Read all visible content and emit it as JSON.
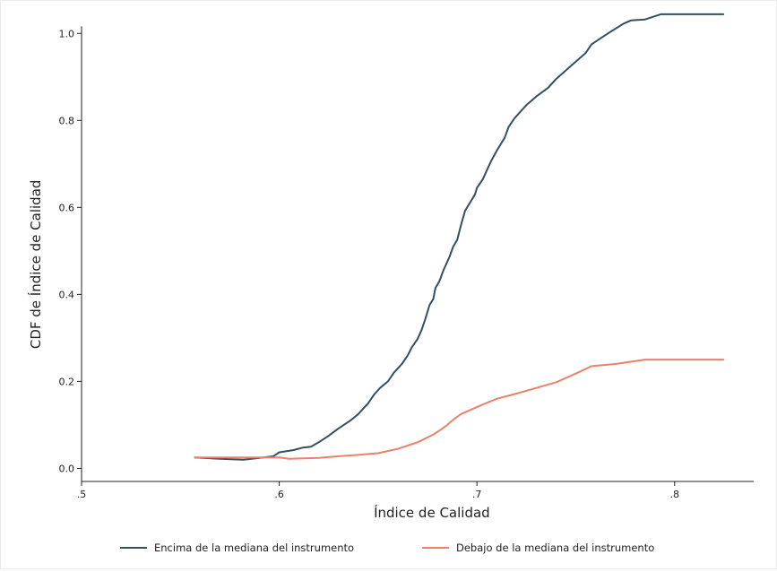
{
  "chart_data": {
    "type": "line",
    "title": "",
    "xlabel": "Índice de Calidad",
    "ylabel": "CDF de Índice de Calidad",
    "xlim": [
      0.5,
      0.84
    ],
    "ylim": [
      -0.03,
      1.05
    ],
    "x_ticks": [
      {
        "value": 0.5,
        "label": ".5"
      },
      {
        "value": 0.6,
        "label": ".6"
      },
      {
        "value": 0.7,
        "label": ".7"
      },
      {
        "value": 0.8,
        "label": ".8"
      }
    ],
    "y_ticks": [
      {
        "value": 0.0,
        "label": "0.0"
      },
      {
        "value": 0.2,
        "label": "0.2"
      },
      {
        "value": 0.4,
        "label": "0.4"
      },
      {
        "value": 0.6,
        "label": "0.6"
      },
      {
        "value": 0.8,
        "label": "0.8"
      },
      {
        "value": 1.0,
        "label": "1.0"
      }
    ],
    "grid": false,
    "legend_position": "bottom",
    "series": [
      {
        "name": "Encima de la mediana del instrumento",
        "color": "#33505e",
        "points": [
          [
            0.557,
            0.025
          ],
          [
            0.57,
            0.022
          ],
          [
            0.582,
            0.02
          ],
          [
            0.59,
            0.024
          ],
          [
            0.597,
            0.028
          ],
          [
            0.6,
            0.037
          ],
          [
            0.607,
            0.042
          ],
          [
            0.612,
            0.048
          ],
          [
            0.616,
            0.05
          ],
          [
            0.62,
            0.06
          ],
          [
            0.625,
            0.075
          ],
          [
            0.63,
            0.092
          ],
          [
            0.636,
            0.11
          ],
          [
            0.64,
            0.125
          ],
          [
            0.645,
            0.15
          ],
          [
            0.648,
            0.17
          ],
          [
            0.651,
            0.185
          ],
          [
            0.655,
            0.2
          ],
          [
            0.658,
            0.22
          ],
          [
            0.662,
            0.24
          ],
          [
            0.665,
            0.26
          ],
          [
            0.667,
            0.278
          ],
          [
            0.67,
            0.298
          ],
          [
            0.672,
            0.318
          ],
          [
            0.674,
            0.345
          ],
          [
            0.676,
            0.375
          ],
          [
            0.678,
            0.39
          ],
          [
            0.679,
            0.415
          ],
          [
            0.681,
            0.43
          ],
          [
            0.683,
            0.455
          ],
          [
            0.686,
            0.485
          ],
          [
            0.688,
            0.51
          ],
          [
            0.69,
            0.525
          ],
          [
            0.692,
            0.56
          ],
          [
            0.694,
            0.592
          ],
          [
            0.697,
            0.615
          ],
          [
            0.699,
            0.63
          ],
          [
            0.7,
            0.645
          ],
          [
            0.703,
            0.665
          ],
          [
            0.705,
            0.685
          ],
          [
            0.707,
            0.705
          ],
          [
            0.71,
            0.73
          ],
          [
            0.712,
            0.745
          ],
          [
            0.714,
            0.76
          ],
          [
            0.716,
            0.785
          ],
          [
            0.719,
            0.805
          ],
          [
            0.722,
            0.82
          ],
          [
            0.725,
            0.835
          ],
          [
            0.73,
            0.855
          ],
          [
            0.736,
            0.875
          ],
          [
            0.74,
            0.895
          ],
          [
            0.745,
            0.915
          ],
          [
            0.75,
            0.935
          ],
          [
            0.755,
            0.955
          ],
          [
            0.758,
            0.975
          ],
          [
            0.763,
            0.99
          ],
          [
            0.768,
            1.005
          ],
          [
            0.774,
            1.022
          ],
          [
            0.778,
            1.03
          ],
          [
            0.785,
            1.032
          ],
          [
            0.793,
            1.044
          ],
          [
            0.825,
            1.044
          ]
        ]
      },
      {
        "name": "Debajo de la mediana del instrumento",
        "color": "#e8826a",
        "points": [
          [
            0.557,
            0.025
          ],
          [
            0.575,
            0.025
          ],
          [
            0.6,
            0.025
          ],
          [
            0.605,
            0.022
          ],
          [
            0.62,
            0.024
          ],
          [
            0.63,
            0.028
          ],
          [
            0.64,
            0.031
          ],
          [
            0.65,
            0.035
          ],
          [
            0.66,
            0.045
          ],
          [
            0.67,
            0.06
          ],
          [
            0.678,
            0.078
          ],
          [
            0.682,
            0.09
          ],
          [
            0.685,
            0.1
          ],
          [
            0.688,
            0.112
          ],
          [
            0.692,
            0.125
          ],
          [
            0.697,
            0.135
          ],
          [
            0.702,
            0.145
          ],
          [
            0.71,
            0.16
          ],
          [
            0.72,
            0.172
          ],
          [
            0.73,
            0.185
          ],
          [
            0.74,
            0.198
          ],
          [
            0.75,
            0.218
          ],
          [
            0.758,
            0.235
          ],
          [
            0.77,
            0.24
          ],
          [
            0.785,
            0.25
          ],
          [
            0.8,
            0.25
          ],
          [
            0.825,
            0.25
          ]
        ]
      }
    ]
  }
}
